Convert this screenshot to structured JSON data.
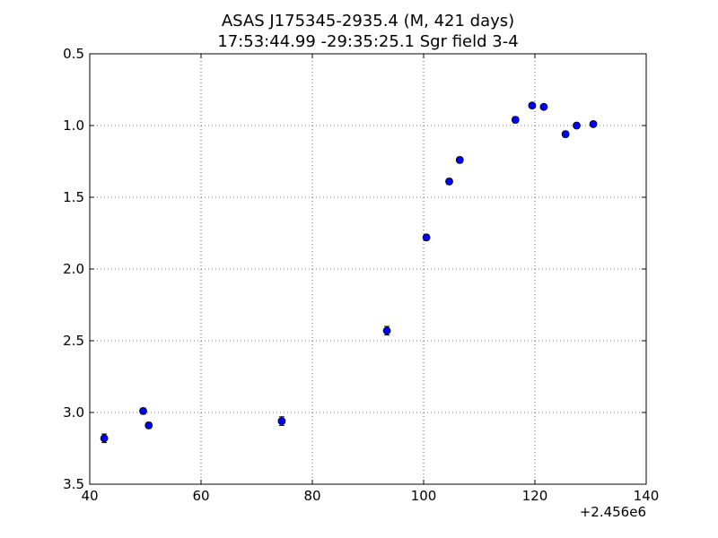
{
  "chart_data": {
    "type": "scatter",
    "title_line1": "ASAS J175345-2935.4  (M, 421 days)",
    "title_line2": "17:53:44.99 -29:35:25.1 Sgr field 3-4",
    "xlabel": "",
    "ylabel": "",
    "x_offset_label": "+2.456e6",
    "xlim": [
      40,
      140
    ],
    "ylim": [
      0.5,
      3.5
    ],
    "y_inverted": true,
    "grid": true,
    "x_ticks": [
      40,
      60,
      80,
      100,
      120,
      140
    ],
    "y_ticks": [
      0.5,
      1.0,
      1.5,
      2.0,
      2.5,
      3.0,
      3.5
    ],
    "x_tick_labels": [
      "40",
      "60",
      "80",
      "100",
      "120",
      "140"
    ],
    "y_tick_labels": [
      "0.5",
      "1.0",
      "1.5",
      "2.0",
      "2.5",
      "3.0",
      "3.5"
    ],
    "marker_color": "#0000ff",
    "points": [
      {
        "x": 42.6,
        "y": 3.18,
        "err": 0.03
      },
      {
        "x": 49.6,
        "y": 2.99,
        "err": 0.02
      },
      {
        "x": 50.6,
        "y": 3.09,
        "err": 0.02
      },
      {
        "x": 74.5,
        "y": 3.06,
        "err": 0.03
      },
      {
        "x": 93.4,
        "y": 2.43,
        "err": 0.03
      },
      {
        "x": 100.5,
        "y": 1.78,
        "err": 0.02
      },
      {
        "x": 104.6,
        "y": 1.39,
        "err": 0.02
      },
      {
        "x": 106.5,
        "y": 1.24,
        "err": 0.02
      },
      {
        "x": 116.5,
        "y": 0.96,
        "err": 0.02
      },
      {
        "x": 119.5,
        "y": 0.86,
        "err": 0.015
      },
      {
        "x": 121.6,
        "y": 0.87,
        "err": 0.015
      },
      {
        "x": 125.5,
        "y": 1.06,
        "err": 0.02
      },
      {
        "x": 127.5,
        "y": 1.0,
        "err": 0.015
      },
      {
        "x": 130.5,
        "y": 0.99,
        "err": 0.015
      }
    ]
  }
}
